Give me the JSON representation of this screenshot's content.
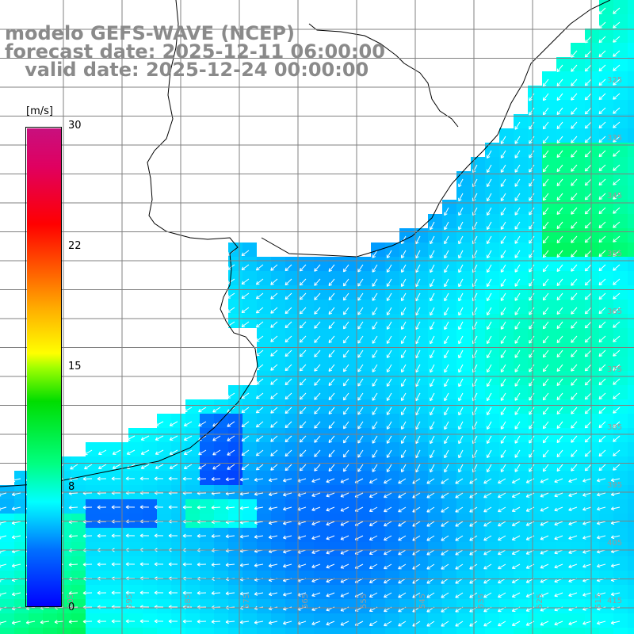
{
  "titles": {
    "line1": "modelo GEFS-WAVE (NCEP)",
    "line2": "forecast date: 2025-12-11 06:00:00",
    "line3": "   valid date: 2025-12-24 00:00:00"
  },
  "colorbar": {
    "unit": "[m/s]",
    "ticks": [
      "30",
      "22",
      "15",
      "8",
      "0"
    ],
    "colors": [
      "#0000ff",
      "#0070ff",
      "#00c8ff",
      "#00ffff",
      "#00ff80",
      "#00dd00",
      "#a0ff00",
      "#ffff00",
      "#ff6000",
      "#ff0000",
      "#c8107e"
    ]
  },
  "grid": {
    "lat_labels": [
      "325",
      "335",
      "345",
      "355",
      "365",
      "375",
      "385",
      "395",
      "405",
      "415"
    ],
    "lon_labels": [
      "605",
      "595",
      "585",
      "575",
      "565",
      "555",
      "545",
      "535",
      "525",
      "515",
      "505"
    ]
  },
  "colors": {
    "land": "#ffffff",
    "grid": "#808080",
    "coast": "#000000",
    "label": "#9a9a9a"
  }
}
